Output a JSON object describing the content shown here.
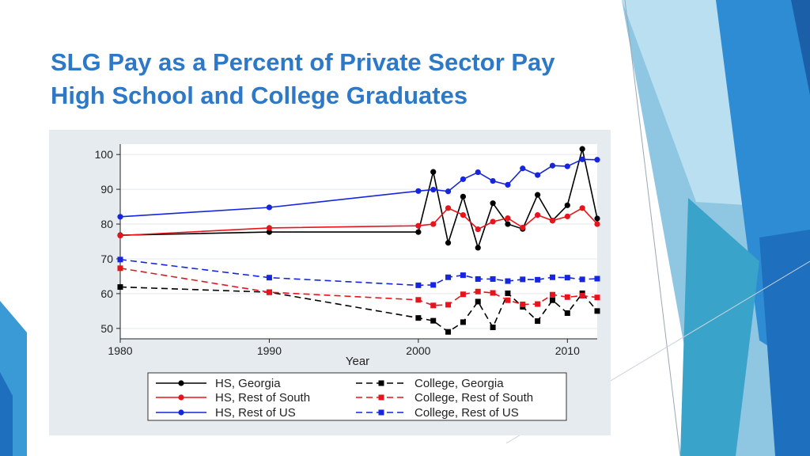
{
  "slide": {
    "title_line1": "SLG Pay as a Percent of Private Sector Pay",
    "title_line2": "High School and College Graduates"
  },
  "colors": {
    "title": "#2d79c7",
    "panel_bg": "#e6ebef",
    "accent_teal": "#3aa3c9",
    "accent_blue": "#1f6fbf"
  },
  "chart_data": {
    "type": "line",
    "title": "",
    "xlabel": "Year",
    "ylabel": "",
    "xlim": [
      1980,
      2012
    ],
    "ylim": [
      47,
      103
    ],
    "xticks": [
      1980,
      1990,
      2000,
      2010
    ],
    "yticks": [
      50,
      60,
      70,
      80,
      90,
      100
    ],
    "grid": true,
    "legend_position": "bottom",
    "x": [
      1980,
      1990,
      2000,
      2001,
      2002,
      2003,
      2004,
      2005,
      2006,
      2007,
      2008,
      2009,
      2010,
      2011,
      2012
    ],
    "series": [
      {
        "name": "HS, Georgia",
        "color": "#000000",
        "dash": "solid",
        "marker": "circle",
        "values": [
          76.8,
          77.7,
          77.7,
          95,
          74.6,
          87.9,
          73.2,
          86,
          80,
          78.6,
          88.4,
          81,
          85.4,
          101.6,
          81.6
        ]
      },
      {
        "name": "HS, Rest of South",
        "color": "#e8141b",
        "dash": "solid",
        "marker": "circle",
        "values": [
          76.7,
          78.9,
          79.5,
          80,
          84.6,
          82.6,
          78.5,
          80.7,
          81.7,
          79,
          82.6,
          81,
          82.2,
          84.6,
          80
        ]
      },
      {
        "name": "HS, Rest of US",
        "color": "#1525e0",
        "dash": "solid",
        "marker": "circle",
        "values": [
          82.1,
          84.8,
          89.5,
          89.9,
          89.4,
          92.9,
          94.9,
          92.4,
          91.3,
          96,
          94.1,
          96.8,
          96.6,
          98.6,
          98.5
        ]
      },
      {
        "name": "College, Georgia",
        "color": "#000000",
        "dash": "dashed",
        "marker": "square",
        "values": [
          61.9,
          60.4,
          53,
          52.2,
          49,
          51.8,
          57.7,
          50.3,
          60.1,
          56.2,
          52.1,
          58.1,
          54.4,
          60.1,
          55
        ]
      },
      {
        "name": "College, Rest of South",
        "color": "#e8141b",
        "dash": "dashed",
        "marker": "square",
        "values": [
          67.3,
          60.4,
          58.2,
          56.6,
          56.8,
          59.8,
          60.6,
          60.2,
          58.1,
          56.9,
          57,
          59.7,
          59,
          59.4,
          58.9
        ]
      },
      {
        "name": "College, Rest of US",
        "color": "#1525e0",
        "dash": "dashed",
        "marker": "square",
        "values": [
          69.8,
          64.6,
          62.4,
          62.5,
          64.7,
          65.3,
          64.2,
          64.2,
          63.6,
          64.1,
          64,
          64.7,
          64.6,
          64.1,
          64.3
        ]
      }
    ]
  }
}
